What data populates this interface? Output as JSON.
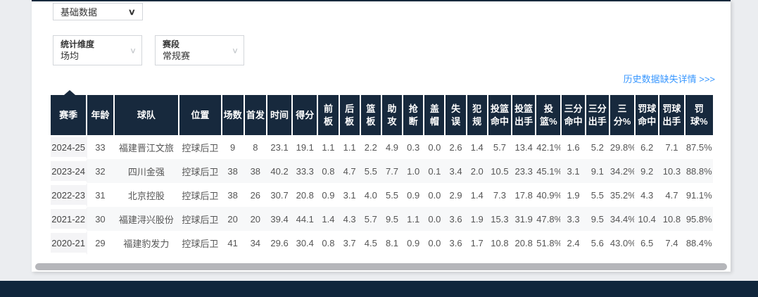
{
  "filters": {
    "data_category": {
      "value": "基础数据"
    },
    "stat_dimension": {
      "label": "统计维度",
      "value": "场均"
    },
    "stage": {
      "label": "赛段",
      "value": "常规赛"
    }
  },
  "links": {
    "history_missing_details": "历史数据缺失详情 >>>"
  },
  "table": {
    "sorted_column": "赛季",
    "columns": [
      "赛季",
      "年龄",
      "球队",
      "位置",
      "场数",
      "首发",
      "时间",
      "得分",
      "前板",
      "后板",
      "篮板",
      "助攻",
      "抢断",
      "盖帽",
      "失误",
      "犯规",
      "投篮命中",
      "投篮出手",
      "投篮%",
      "三分命中",
      "三分出手",
      "三分%",
      "罚球命中",
      "罚球出手",
      "罚球%"
    ],
    "rows": [
      [
        "2024-25",
        "33",
        "福建晋江文旅",
        "控球后卫",
        "9",
        "8",
        "23.1",
        "19.1",
        "1.1",
        "1.1",
        "2.2",
        "4.9",
        "0.3",
        "0.0",
        "2.6",
        "1.4",
        "5.7",
        "13.4",
        "42.1%",
        "1.6",
        "5.2",
        "29.8%",
        "6.2",
        "7.1",
        "87.5%"
      ],
      [
        "2023-24",
        "32",
        "四川金强",
        "控球后卫",
        "38",
        "38",
        "40.2",
        "33.3",
        "0.8",
        "4.7",
        "5.5",
        "7.7",
        "1.0",
        "0.1",
        "3.4",
        "2.0",
        "10.5",
        "23.3",
        "45.1%",
        "3.1",
        "9.1",
        "34.2%",
        "9.2",
        "10.3",
        "88.8%"
      ],
      [
        "2022-23",
        "31",
        "北京控股",
        "控球后卫",
        "38",
        "26",
        "30.7",
        "20.8",
        "0.9",
        "3.1",
        "4.0",
        "5.5",
        "0.9",
        "0.0",
        "2.9",
        "1.4",
        "7.3",
        "17.8",
        "40.9%",
        "1.9",
        "5.5",
        "35.2%",
        "4.3",
        "4.7",
        "91.1%"
      ],
      [
        "2021-22",
        "30",
        "福建浔兴股份",
        "控球后卫",
        "20",
        "20",
        "39.4",
        "44.1",
        "1.4",
        "4.3",
        "5.7",
        "9.5",
        "1.1",
        "0.0",
        "3.6",
        "1.9",
        "15.3",
        "31.9",
        "47.8%",
        "3.3",
        "9.5",
        "34.4%",
        "10.4",
        "10.8",
        "95.8%"
      ],
      [
        "2020-21",
        "29",
        "福建豹发力",
        "控球后卫",
        "41",
        "34",
        "29.6",
        "30.4",
        "0.8",
        "3.7",
        "4.5",
        "8.1",
        "0.9",
        "0.0",
        "3.6",
        "1.7",
        "10.8",
        "20.8",
        "51.8%",
        "2.4",
        "5.6",
        "43.0%",
        "6.5",
        "7.4",
        "88.4%"
      ]
    ]
  },
  "colors": {
    "header_bg": "#17293d",
    "footer_bg": "#10263c",
    "link_blue": "#3897ff",
    "row_stripe": "#f7f8f9",
    "season_col_bg": "#f4f4f6",
    "page_bg": "#ebedf0"
  }
}
